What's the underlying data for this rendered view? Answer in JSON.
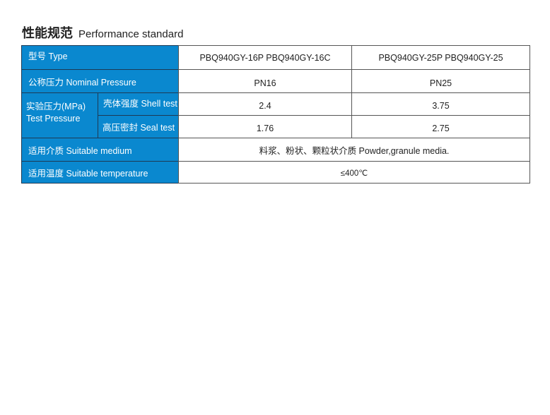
{
  "title": {
    "zh": "性能规范",
    "en": "Performance standard"
  },
  "colors": {
    "header_bg": "#0a88cf"
  },
  "rows": {
    "type": {
      "label": "型号 Type",
      "values": [
        "PBQ940GY-16P  PBQ940GY-16C",
        "PBQ940GY-25P  PBQ940GY-25"
      ]
    },
    "nominal": {
      "label": "公称压力 Nominal Pressure",
      "values": [
        "PN16",
        "PN25"
      ]
    },
    "test": {
      "label_zh": "实验压力(MPa)",
      "label_en": "Test Pressure",
      "shell": {
        "label": "壳体强度 Shell test",
        "values": [
          "2.4",
          "3.75"
        ]
      },
      "seal": {
        "label": "高压密封 Seal test",
        "values": [
          "1.76",
          "2.75"
        ]
      }
    },
    "medium": {
      "label": "适用介质 Suitable medium",
      "value": "料浆、粉状、颗粒状介质 Powder,granule media."
    },
    "temperature": {
      "label": "适用温度 Suitable temperature",
      "value": "≤400℃"
    }
  }
}
